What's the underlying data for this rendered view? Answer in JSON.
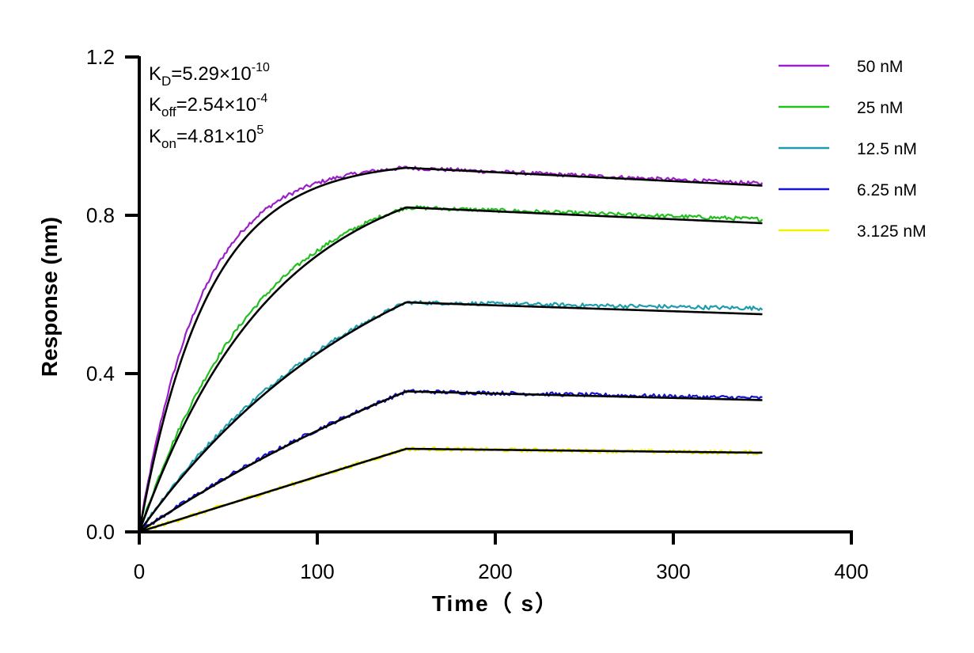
{
  "chart_data": {
    "type": "line",
    "xlabel": "Time（ s）",
    "ylabel": "Response (nm)",
    "xlim": [
      0,
      400
    ],
    "ylim": [
      0,
      1.2
    ],
    "xticks": [
      "0",
      "100",
      "200",
      "300",
      "400"
    ],
    "yticks": [
      "0.0",
      "0.4",
      "0.8",
      "1.2"
    ],
    "association_end_s": 150,
    "end_s": 350,
    "grid": false,
    "legend_position": "top-right",
    "fit_color": "#000000",
    "kinetics": {
      "kd": {
        "label": "K",
        "sub": "D",
        "value": "=5.29×10",
        "exp": "-10"
      },
      "koff": {
        "label": "K",
        "sub": "off",
        "value": "=2.54×10",
        "exp": "-4"
      },
      "kon": {
        "label": "K",
        "sub": "on",
        "value": "=4.81×10",
        "exp": "5"
      }
    },
    "series": [
      {
        "name": "50 nM",
        "color": "#9B1FC8",
        "plateau": 0.92,
        "end": 0.875,
        "raw_end": 0.88,
        "tau": 38
      },
      {
        "name": "25 nM",
        "color": "#22C01F",
        "plateau": 0.82,
        "end": 0.78,
        "raw_end": 0.79,
        "tau": 75
      },
      {
        "name": "12.5 nM",
        "color": "#1E9DAE",
        "plateau": 0.58,
        "end": 0.55,
        "raw_end": 0.565,
        "tau": 140
      },
      {
        "name": "6.25 nM",
        "color": "#1414D2",
        "plateau": 0.355,
        "end": 0.333,
        "raw_end": 0.338,
        "tau": 300
      },
      {
        "name": "3.125 nM",
        "color": "#F2F200",
        "plateau": 0.21,
        "end": 0.2,
        "raw_end": 0.2,
        "tau": 100000
      }
    ]
  }
}
